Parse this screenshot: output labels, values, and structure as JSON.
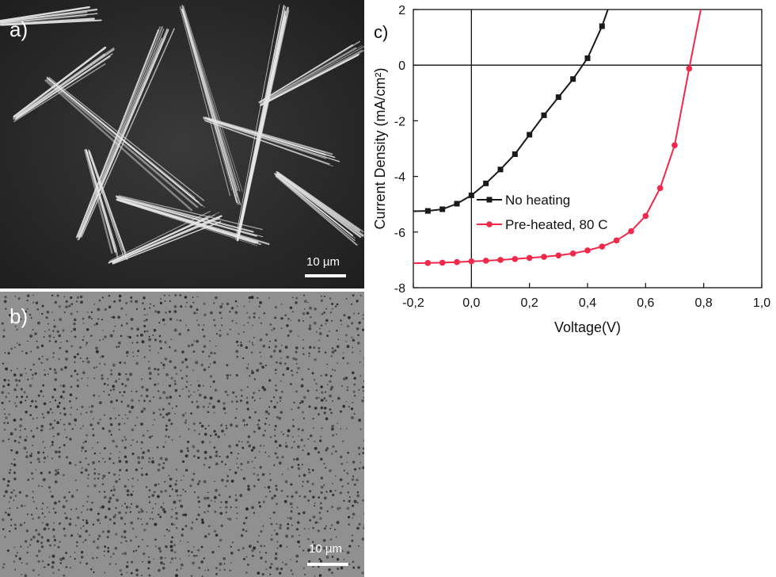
{
  "panels": {
    "a": {
      "label": "a)",
      "scalebar": "10 µm"
    },
    "b": {
      "label": "b)",
      "scalebar": "10 µm"
    },
    "c": {
      "label": "c)"
    }
  },
  "colors": {
    "series_black": "#1a1a1a",
    "series_red": "#f0284a",
    "sem_a_background": "#2f2f2f",
    "sem_b_background": "#8e8e8e"
  },
  "chart_data": {
    "type": "line",
    "xlabel": "Voltage(V)",
    "ylabel": "Current Density (mA/cm²)",
    "xlim": [
      -0.2,
      1.0
    ],
    "ylim": [
      -8,
      2
    ],
    "xticks": [
      "-0,2",
      "0,0",
      "0,2",
      "0,4",
      "0,6",
      "0,8",
      "1,0"
    ],
    "xtick_values": [
      -0.2,
      0.0,
      0.2,
      0.4,
      0.6,
      0.8,
      1.0
    ],
    "yticks": [
      "2",
      "0",
      "-2",
      "-4",
      "-6",
      "-8"
    ],
    "ytick_values": [
      2,
      0,
      -2,
      -4,
      -6,
      -8
    ],
    "legend_position": "center",
    "series": [
      {
        "name": "No heating",
        "marker": "square",
        "color": "#1a1a1a",
        "points": [
          [
            -0.2,
            -5.25
          ],
          [
            -0.15,
            -5.24
          ],
          [
            -0.1,
            -5.18
          ],
          [
            -0.05,
            -4.98
          ],
          [
            0.0,
            -4.68
          ],
          [
            0.05,
            -4.25
          ],
          [
            0.1,
            -3.75
          ],
          [
            0.15,
            -3.2
          ],
          [
            0.2,
            -2.5
          ],
          [
            0.25,
            -1.8
          ],
          [
            0.3,
            -1.15
          ],
          [
            0.35,
            -0.5
          ],
          [
            0.4,
            0.25
          ],
          [
            0.45,
            1.4
          ],
          [
            0.47,
            2.0
          ]
        ],
        "marked_points": [
          [
            -0.15,
            -5.24
          ],
          [
            -0.1,
            -5.18
          ],
          [
            -0.05,
            -4.98
          ],
          [
            0.0,
            -4.68
          ],
          [
            0.05,
            -4.25
          ],
          [
            0.1,
            -3.75
          ],
          [
            0.15,
            -3.2
          ],
          [
            0.2,
            -2.5
          ],
          [
            0.25,
            -1.8
          ],
          [
            0.3,
            -1.15
          ],
          [
            0.35,
            -0.5
          ],
          [
            0.4,
            0.25
          ],
          [
            0.45,
            1.4
          ]
        ]
      },
      {
        "name": "Pre-heated, 80 C",
        "marker": "circle",
        "color": "#f0284a",
        "points": [
          [
            -0.2,
            -7.12
          ],
          [
            -0.15,
            -7.11
          ],
          [
            -0.1,
            -7.1
          ],
          [
            -0.05,
            -7.08
          ],
          [
            0.0,
            -7.05
          ],
          [
            0.05,
            -7.03
          ],
          [
            0.1,
            -7.0
          ],
          [
            0.15,
            -6.97
          ],
          [
            0.2,
            -6.93
          ],
          [
            0.25,
            -6.89
          ],
          [
            0.3,
            -6.84
          ],
          [
            0.35,
            -6.77
          ],
          [
            0.4,
            -6.66
          ],
          [
            0.45,
            -6.52
          ],
          [
            0.5,
            -6.3
          ],
          [
            0.55,
            -5.97
          ],
          [
            0.6,
            -5.42
          ],
          [
            0.65,
            -4.42
          ],
          [
            0.7,
            -2.88
          ],
          [
            0.75,
            -0.12
          ],
          [
            0.79,
            2.0
          ]
        ],
        "marked_points": [
          [
            -0.15,
            -7.11
          ],
          [
            -0.1,
            -7.1
          ],
          [
            -0.05,
            -7.08
          ],
          [
            0.0,
            -7.05
          ],
          [
            0.05,
            -7.03
          ],
          [
            0.1,
            -7.0
          ],
          [
            0.15,
            -6.97
          ],
          [
            0.2,
            -6.93
          ],
          [
            0.25,
            -6.89
          ],
          [
            0.3,
            -6.84
          ],
          [
            0.35,
            -6.77
          ],
          [
            0.4,
            -6.66
          ],
          [
            0.45,
            -6.52
          ],
          [
            0.5,
            -6.3
          ],
          [
            0.55,
            -5.97
          ],
          [
            0.6,
            -5.42
          ],
          [
            0.65,
            -4.42
          ],
          [
            0.7,
            -2.88
          ],
          [
            0.75,
            -0.12
          ]
        ]
      }
    ]
  }
}
